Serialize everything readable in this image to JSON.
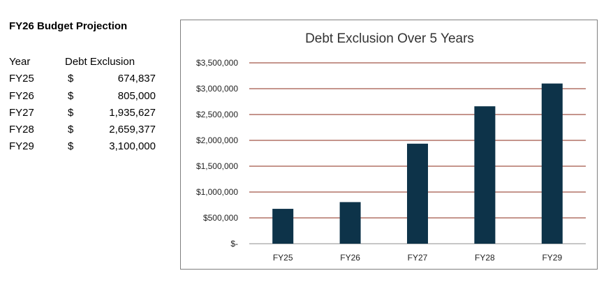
{
  "sheet": {
    "title": "FY26 Budget Projection",
    "headers": {
      "year": "Year",
      "debt_exclusion": "Debt Exclusion"
    },
    "rows": [
      {
        "year": "FY25",
        "currency": "$",
        "value": "674,837"
      },
      {
        "year": "FY26",
        "currency": "$",
        "value": "805,000"
      },
      {
        "year": "FY27",
        "currency": "$",
        "value": "1,935,627"
      },
      {
        "year": "FY28",
        "currency": "$",
        "value": "2,659,377"
      },
      {
        "year": "FY29",
        "currency": "$",
        "value": "3,100,000"
      }
    ]
  },
  "chart_data": {
    "type": "bar",
    "title": "Debt Exclusion Over 5 Years",
    "categories": [
      "FY25",
      "FY26",
      "FY27",
      "FY28",
      "FY29"
    ],
    "values": [
      674837,
      805000,
      1935627,
      2659377,
      3100000
    ],
    "ylim": [
      0,
      3500000
    ],
    "yticks": [
      0,
      500000,
      1000000,
      1500000,
      2000000,
      2500000,
      3000000,
      3500000
    ],
    "ytick_labels": [
      "$-",
      "$500,000",
      "$1,000,000",
      "$1,500,000",
      "$2,000,000",
      "$2,500,000",
      "$3,000,000",
      "$3,500,000"
    ],
    "xlabel": "",
    "ylabel": "",
    "grid": true,
    "legend": false,
    "colors": {
      "bar": "#0d3349",
      "gridline": "#8b2b1a",
      "axis": "#8c8c8c"
    }
  }
}
